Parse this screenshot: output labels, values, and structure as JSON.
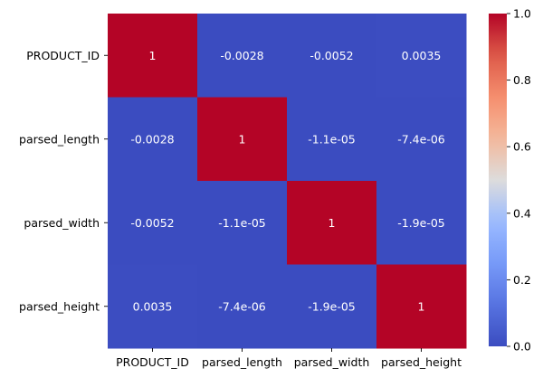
{
  "chart_data": {
    "type": "heatmap",
    "title": "",
    "xlabel": "",
    "ylabel": "",
    "x_categories": [
      "PRODUCT_ID",
      "parsed_length",
      "parsed_width",
      "parsed_height"
    ],
    "y_categories": [
      "PRODUCT_ID",
      "parsed_length",
      "parsed_width",
      "parsed_height"
    ],
    "values": [
      [
        1,
        -0.0028,
        -0.0052,
        0.0035
      ],
      [
        -0.0028,
        1,
        -1.1e-05,
        -7.4e-06
      ],
      [
        -0.0052,
        -1.1e-05,
        1,
        -1.9e-05
      ],
      [
        0.0035,
        -7.4e-06,
        -1.9e-05,
        1
      ]
    ],
    "labels": [
      [
        "1",
        "-0.0028",
        "-0.0052",
        "0.0035"
      ],
      [
        "-0.0028",
        "1",
        "-1.1e-05",
        "-7.4e-06"
      ],
      [
        "-0.0052",
        "-1.1e-05",
        "1",
        "-1.9e-05"
      ],
      [
        "0.0035",
        "-7.4e-06",
        "-1.9e-05",
        "1"
      ]
    ],
    "colormap": "coolwarm",
    "colorbar": {
      "range": [
        0,
        1
      ],
      "ticks": [
        0,
        0.2,
        0.4,
        0.6,
        0.8,
        1
      ],
      "tick_labels": [
        "0.0",
        "0.2",
        "0.4",
        "0.6",
        "0.8",
        "1.0"
      ],
      "placement": "right"
    },
    "colors": {
      "low": "#3b4cc0",
      "high": "#b40426"
    }
  }
}
